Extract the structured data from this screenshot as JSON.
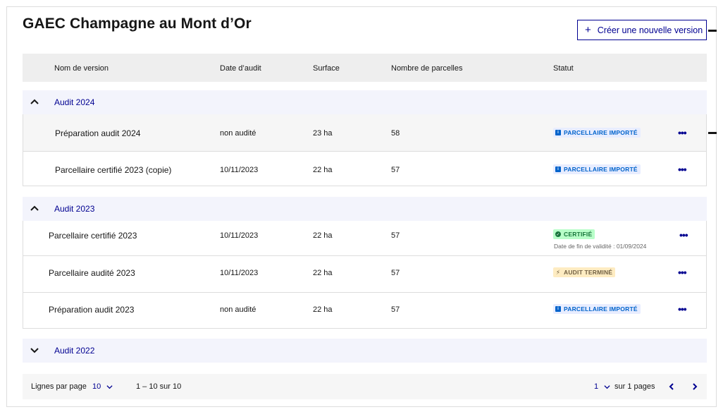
{
  "title": "GAEC Champagne au Mont d’Or",
  "create_button": {
    "icon": "plus-icon",
    "label": "Créer une nouvelle version"
  },
  "table": {
    "columns": [
      "Nom de version",
      "Date d’audit",
      "Surface",
      "Nombre de parcelles",
      "Statut"
    ]
  },
  "groups": [
    {
      "label": "Audit 2024",
      "expanded": true,
      "rows": [
        {
          "name": "Préparation audit 2024",
          "date": "non audité",
          "surface": "23 ha",
          "parcelles": "58",
          "status": "PARCELLAIRE IMPORTÉ",
          "status_kind": "info"
        },
        {
          "name": "Parcellaire certifié 2023 (copie)",
          "date": "10/11/2023",
          "surface": "22 ha",
          "parcelles": "57",
          "status": "PARCELLAIRE IMPORTÉ",
          "status_kind": "info"
        }
      ]
    },
    {
      "label": "Audit 2023",
      "expanded": true,
      "rows": [
        {
          "name": "Parcellaire certifié 2023",
          "date": "10/11/2023",
          "surface": "22 ha",
          "parcelles": "57",
          "status": "CERTIFIÉ",
          "status_kind": "ok",
          "note": "Date de fin de validité : 01/09/2024"
        },
        {
          "name": "Parcellaire audité 2023",
          "date": "10/11/2023",
          "surface": "22 ha",
          "parcelles": "57",
          "status": "AUDIT TERMINÉ",
          "status_kind": "warn"
        },
        {
          "name": "Préparation audit 2023",
          "date": "non audité",
          "surface": "22 ha",
          "parcelles": "57",
          "status": "PARCELLAIRE IMPORTÉ",
          "status_kind": "info"
        }
      ]
    },
    {
      "label": "Audit 2022",
      "expanded": false,
      "rows": []
    }
  ],
  "actions_icon": "more-horizontal-icon",
  "pagination": {
    "rows_per_page_label": "Lignes par page",
    "rows_per_page_value": "10",
    "range": "1 – 10 sur 10",
    "page_value": "1",
    "pages_label": "sur 1 pages"
  },
  "colors": {
    "primary": "#000091",
    "info": "#0063cb",
    "success": "#18753c",
    "warning": "#716043",
    "group_bg": "#f3f4fc"
  }
}
